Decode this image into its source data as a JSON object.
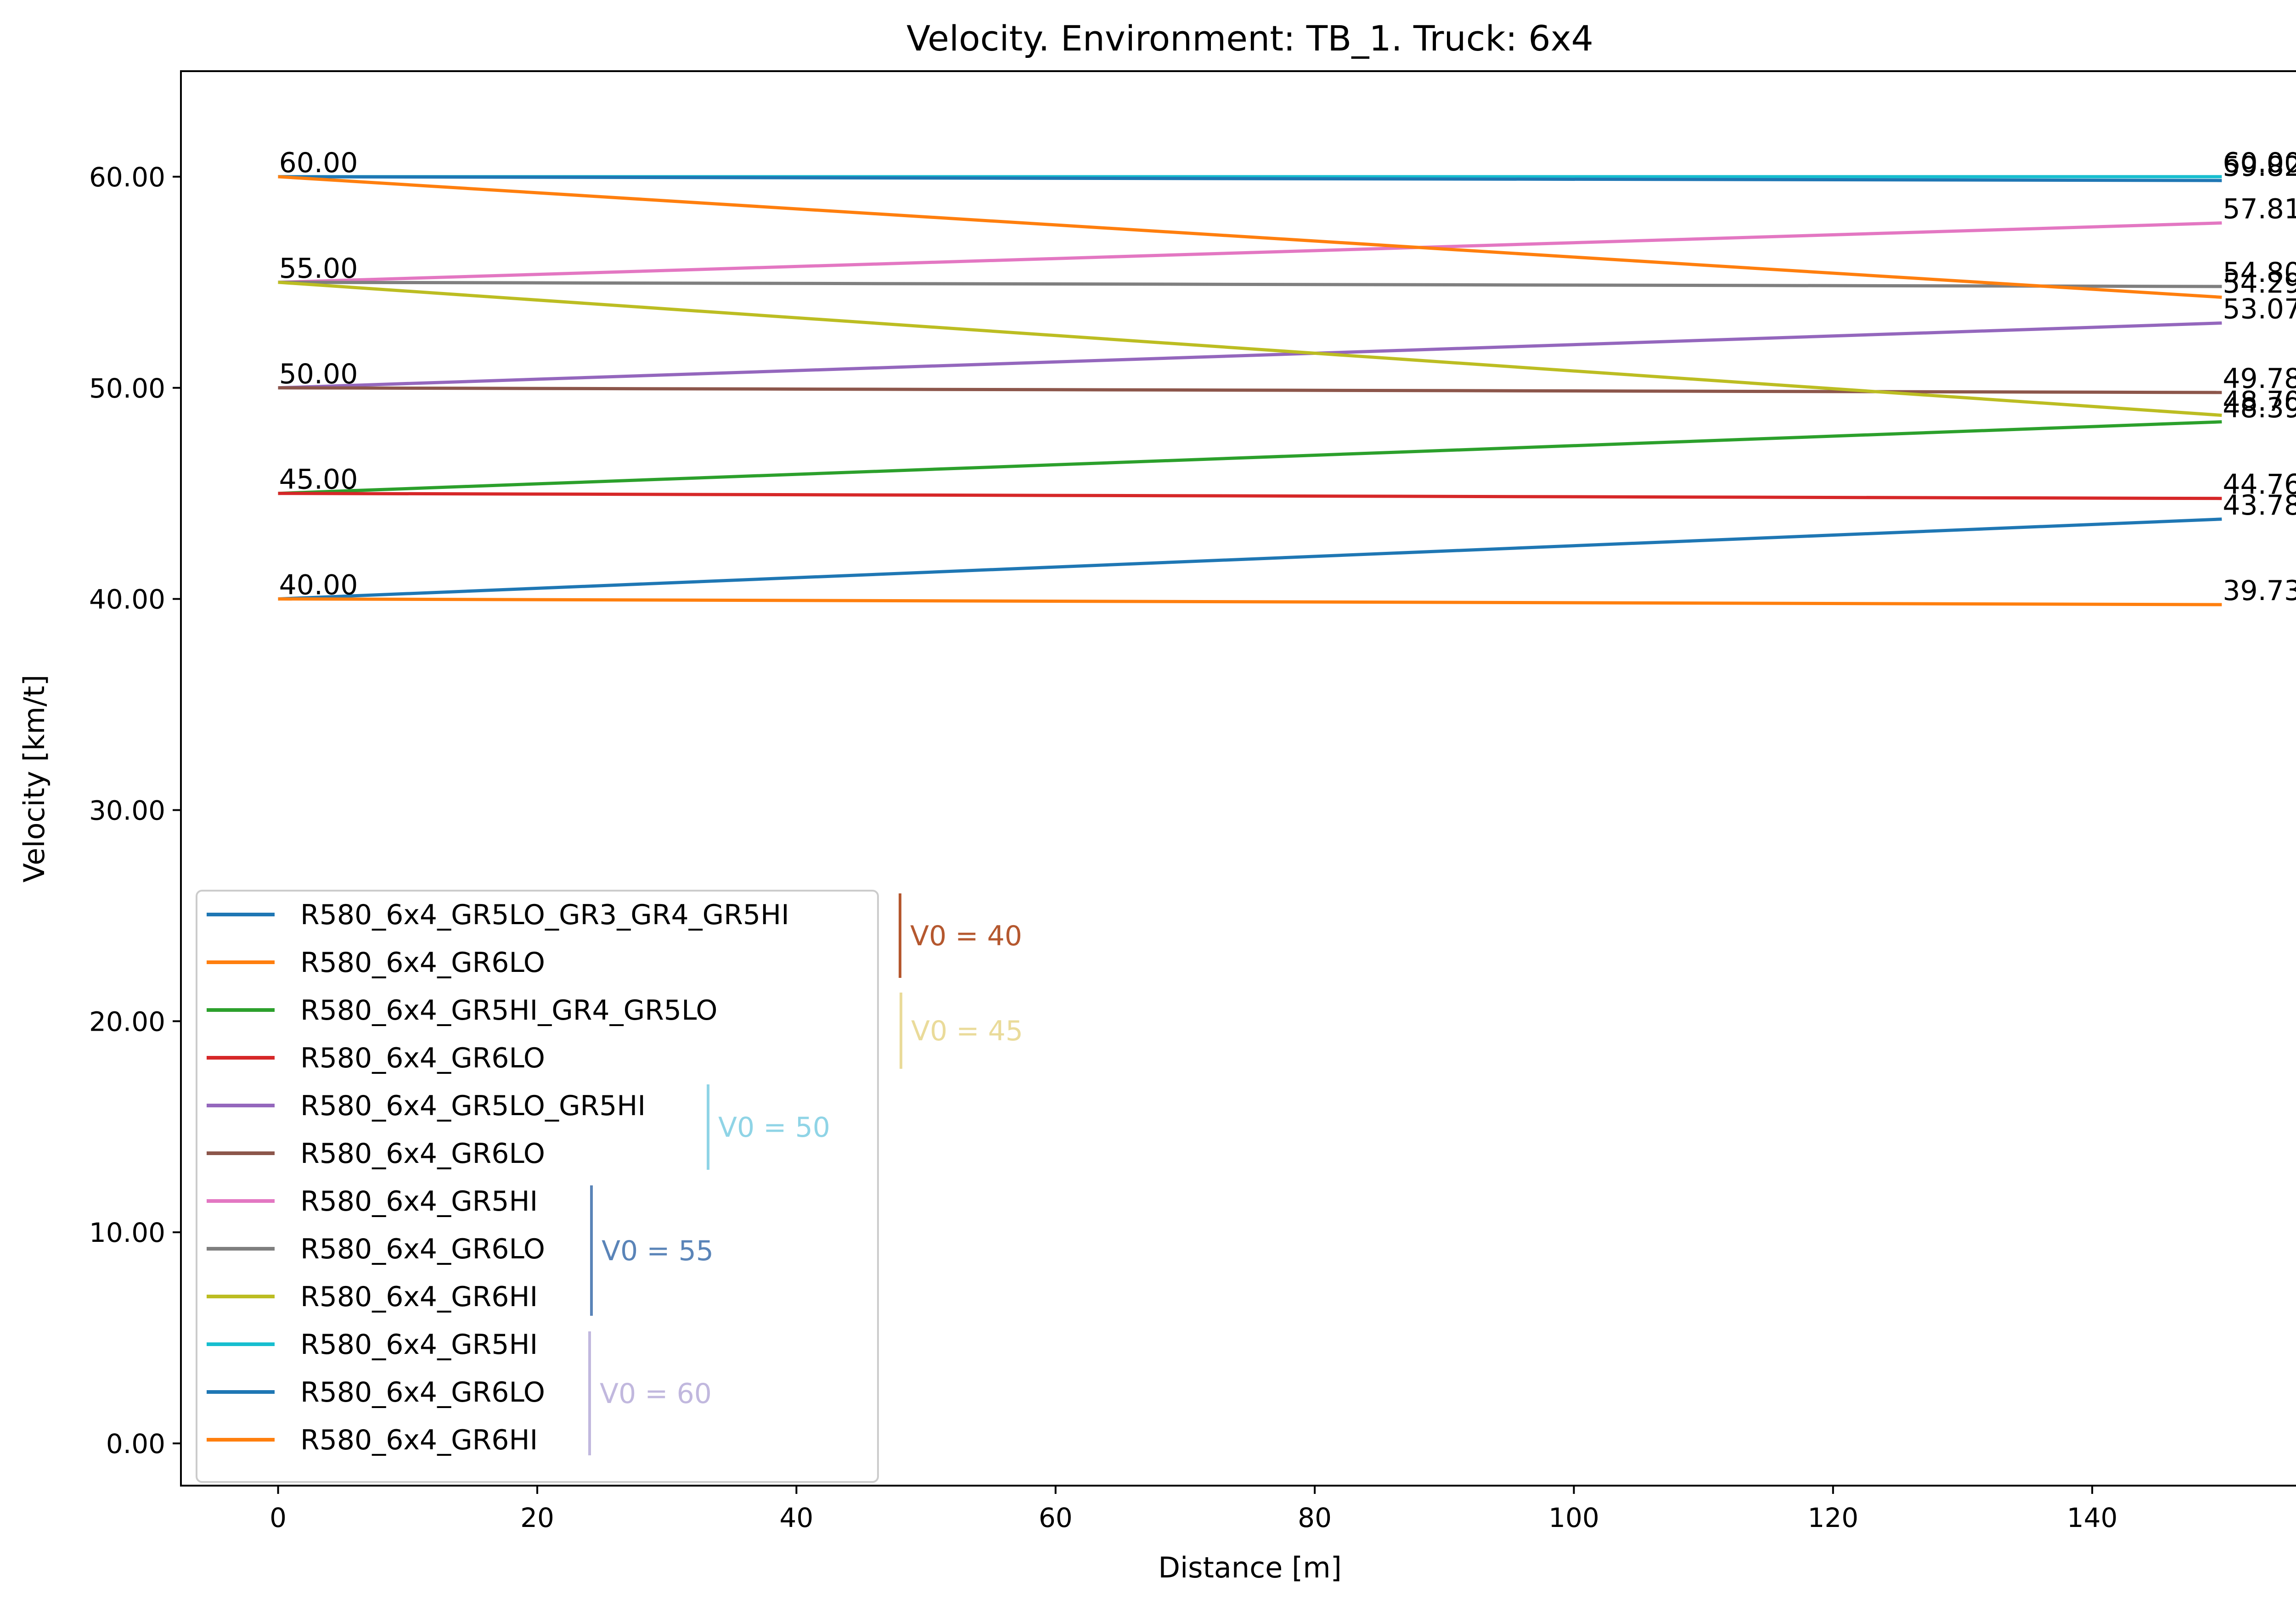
{
  "chart_data": {
    "type": "line",
    "title": "Velocity. Environment: TB_1. Truck: 6x4",
    "xlabel": "Distance [m]",
    "ylabel": "Velocity [km/t]",
    "xlim": [
      -7.5,
      157.5
    ],
    "ylim": [
      -2,
      65
    ],
    "xticks": [
      0,
      20,
      40,
      60,
      80,
      100,
      120,
      140
    ],
    "yticks": [
      0,
      10,
      20,
      30,
      40,
      50,
      60
    ],
    "ytick_labels": [
      "0.00",
      "10.00",
      "20.00",
      "30.00",
      "40.00",
      "50.00",
      "60.00"
    ],
    "grid": false,
    "legend_position": "lower-left",
    "series": [
      {
        "name": "R580_6x4_GR5LO_GR3_GR4_GR5HI",
        "color": "#1f77b4",
        "x": [
          0,
          150
        ],
        "y": [
          40.0,
          43.78
        ],
        "start_label": "40.00",
        "end_label": "43.78"
      },
      {
        "name": "R580_6x4_GR6LO",
        "color": "#ff7f0e",
        "x": [
          0,
          150
        ],
        "y": [
          40.0,
          39.73
        ],
        "start_label": "",
        "end_label": "39.73"
      },
      {
        "name": "R580_6x4_GR5HI_GR4_GR5LO",
        "color": "#2ca02c",
        "x": [
          0,
          150
        ],
        "y": [
          45.0,
          48.39
        ],
        "start_label": "45.00",
        "end_label": "48.39"
      },
      {
        "name": "R580_6x4_GR6LO",
        "color": "#d62728",
        "x": [
          0,
          150
        ],
        "y": [
          45.0,
          44.76
        ],
        "start_label": "",
        "end_label": "44.76"
      },
      {
        "name": "R580_6x4_GR5LO_GR5HI",
        "color": "#9467bd",
        "x": [
          0,
          150
        ],
        "y": [
          50.0,
          53.07
        ],
        "start_label": "50.00",
        "end_label": "53.07"
      },
      {
        "name": "R580_6x4_GR6LO",
        "color": "#8c564b",
        "x": [
          0,
          150
        ],
        "y": [
          50.0,
          49.78
        ],
        "start_label": "",
        "end_label": "49.78"
      },
      {
        "name": "R580_6x4_GR5HI",
        "color": "#e377c2",
        "x": [
          0,
          150
        ],
        "y": [
          55.0,
          57.81
        ],
        "start_label": "55.00",
        "end_label": "57.81"
      },
      {
        "name": "R580_6x4_GR6LO",
        "color": "#7f7f7f",
        "x": [
          0,
          150
        ],
        "y": [
          55.0,
          54.8
        ],
        "start_label": "",
        "end_label": "54.80"
      },
      {
        "name": "R580_6x4_GR6HI",
        "color": "#bcbd22",
        "x": [
          0,
          150
        ],
        "y": [
          55.0,
          48.7
        ],
        "start_label": "",
        "end_label": "48.70"
      },
      {
        "name": "R580_6x4_GR5HI",
        "color": "#17becf",
        "x": [
          0,
          150
        ],
        "y": [
          60.0,
          60.0
        ],
        "start_label": "60.00",
        "end_label": "60.00"
      },
      {
        "name": "R580_6x4_GR6LO",
        "color": "#1f77b4",
        "x": [
          0,
          150
        ],
        "y": [
          60.0,
          59.82
        ],
        "start_label": "",
        "end_label": "59.82"
      },
      {
        "name": "R580_6x4_GR6HI",
        "color": "#ff7f0e",
        "x": [
          0,
          150
        ],
        "y": [
          60.0,
          54.29
        ],
        "start_label": "",
        "end_label": "54.29"
      }
    ],
    "groups": [
      {
        "label": "V0 = 40",
        "color": "#b5582f"
      },
      {
        "label": "V0 = 45",
        "color": "#eadb9a"
      },
      {
        "label": "V0 = 50",
        "color": "#8fd4e6"
      },
      {
        "label": "V0 = 55",
        "color": "#5a84b8"
      },
      {
        "label": "V0 = 60",
        "color": "#c1b8de"
      }
    ]
  }
}
